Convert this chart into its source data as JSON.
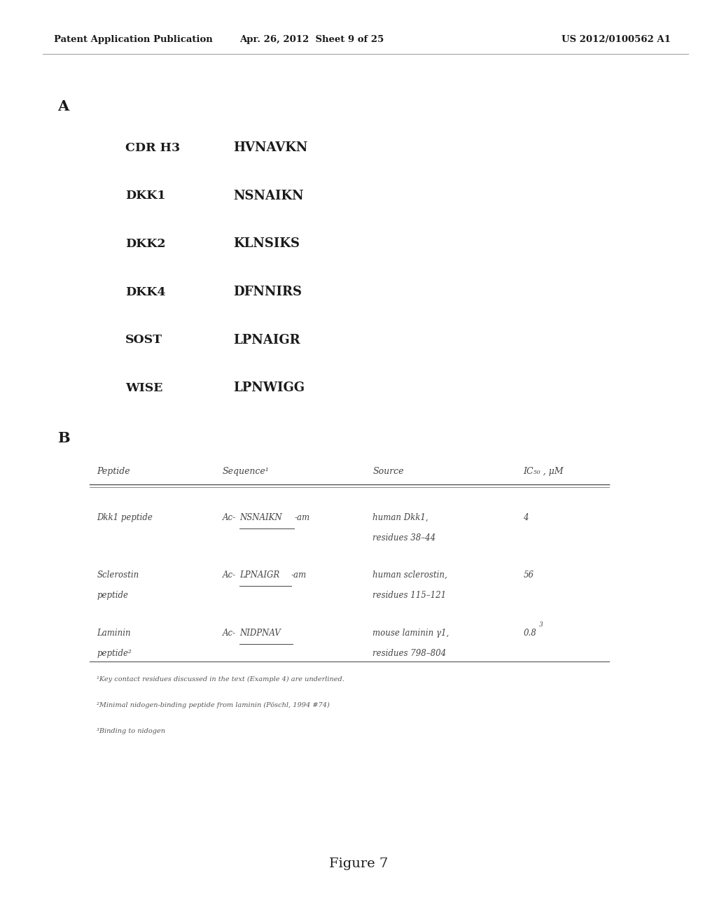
{
  "header_left": "Patent Application Publication",
  "header_mid": "Apr. 26, 2012  Sheet 9 of 25",
  "header_right": "US 2012/0100562 A1",
  "section_A_label": "A",
  "section_A_rows": [
    {
      "label": "CDR H3",
      "sequence": "HVNAVKN"
    },
    {
      "label": "DKK1",
      "sequence": "NSNAIKN"
    },
    {
      "label": "DKK2",
      "sequence": "KLNSIKS"
    },
    {
      "label": "DKK4",
      "sequence": "DFNNIRS"
    },
    {
      "label": "SOST",
      "sequence": "LPNAIGR"
    },
    {
      "label": "WISE",
      "sequence": "LPNWIGG"
    }
  ],
  "section_B_label": "B",
  "table_headers": [
    "Peptide",
    "Sequence¹",
    "Source",
    "IC₅₀ , μM"
  ],
  "table_rows": [
    {
      "peptide": "Dkk1 peptide",
      "peptide2": "",
      "sequence": "Ac-NSNAIKN-am",
      "seq_prefix": "Ac-",
      "seq_underline": "NSNAIKN",
      "seq_suffix": "-am",
      "source1": "human Dkk1,",
      "source2": "residues 38–44",
      "ic50": "4",
      "ic50_sup": ""
    },
    {
      "peptide": "Sclerostin",
      "peptide2": "peptide",
      "sequence": "Ac-LPNAIGR-am",
      "seq_prefix": "Ac-",
      "seq_underline": "LPNAIGR",
      "seq_suffix": "-am",
      "source1": "human sclerostin,",
      "source2": "residues 115–121",
      "ic50": "56",
      "ic50_sup": ""
    },
    {
      "peptide": "Laminin",
      "peptide2": "peptide²",
      "sequence": "Ac-NIDPNAV",
      "seq_prefix": "Ac-",
      "seq_underline": "NIDPNAV",
      "seq_suffix": "",
      "source1": "mouse laminin γ1,",
      "source2": "residues 798–804",
      "ic50": "0.8",
      "ic50_sup": "3"
    }
  ],
  "footnotes": [
    "¹Key contact residues discussed in the text (Example 4) are underlined.",
    "²Minimal nidogen-binding peptide from laminin (Pöschl, 1994 #74)",
    "³Binding to nidogen"
  ],
  "figure_label": "Figure 7",
  "bg_color": "#ffffff",
  "text_color": "#1a1a1a"
}
